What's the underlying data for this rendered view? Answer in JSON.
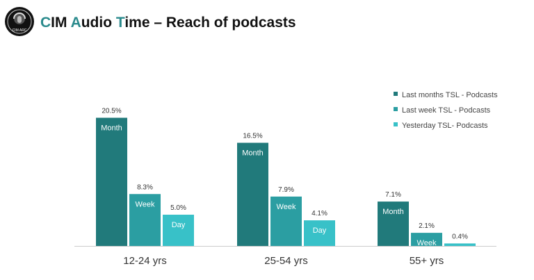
{
  "header": {
    "logo_text": "CIM ARC",
    "title_parts": [
      {
        "text": "C",
        "accent": true
      },
      {
        "text": "IM ",
        "accent": false
      },
      {
        "text": "A",
        "accent": true
      },
      {
        "text": "udio ",
        "accent": false
      },
      {
        "text": "T",
        "accent": true
      },
      {
        "text": "ime – Reach of podcasts",
        "accent": false
      }
    ]
  },
  "colors": {
    "month": "#217a7b",
    "week": "#2b9ea2",
    "day": "#38c1c8",
    "axis": "#cccccc",
    "title_accent": "#2a8a8c"
  },
  "chart_data": {
    "type": "bar",
    "title": "",
    "xlabel": "",
    "ylabel": "",
    "ylim": [
      0,
      22
    ],
    "grid": false,
    "legend_position": "top-right",
    "categories": [
      "12-24 yrs",
      "25-54 yrs",
      "55+ yrs"
    ],
    "series": [
      {
        "name": "Last months TSL - Podcasts",
        "in_bar_label": "Month",
        "values": [
          20.5,
          16.5,
          7.1
        ],
        "value_labels": [
          "20.5%",
          "16.5%",
          "7.1%"
        ]
      },
      {
        "name": "Last week TSL - Podcasts",
        "in_bar_label": "Week",
        "values": [
          8.3,
          7.9,
          2.1
        ],
        "value_labels": [
          "8.3%",
          "7.9%",
          "2.1%"
        ]
      },
      {
        "name": "Yesterday TSL- Podcasts",
        "in_bar_label": "Day",
        "values": [
          5.0,
          4.1,
          0.4
        ],
        "value_labels": [
          "5.0%",
          "4.1%",
          "0.4%"
        ]
      }
    ]
  }
}
